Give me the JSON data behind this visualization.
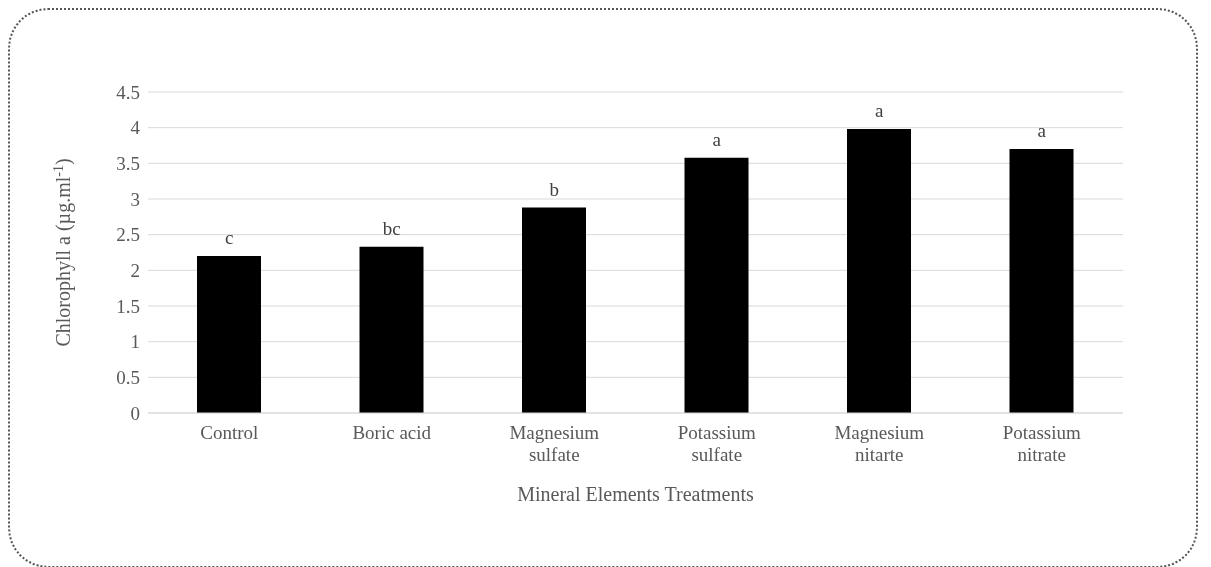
{
  "chart_data": {
    "type": "bar",
    "xlabel": "Mineral Elements Treatments",
    "ylabel": "Chlorophyll a (µg.ml$^{-1}$)",
    "categories": [
      "Control",
      "Boric acid",
      "Magnesium sulfate",
      "Potassium sulfate",
      "Magnesium nitarte",
      "Potassium nitrate"
    ],
    "values": [
      2.2,
      2.33,
      2.88,
      3.58,
      3.98,
      3.7
    ],
    "color": "#000000",
    "ylim": [
      0,
      4.5
    ],
    "yticks": [
      0,
      0.5,
      1,
      1.5,
      2,
      2.5,
      3,
      3.5,
      4,
      4.5
    ],
    "grid": "y",
    "legend": false,
    "annotations": [
      {
        "text": "c",
        "x": "Control",
        "y": 2.2
      },
      {
        "text": "bc",
        "x": "Boric acid",
        "y": 2.33
      },
      {
        "text": "b",
        "x": "Magnesium sulfate",
        "y": 2.88
      },
      {
        "text": "a",
        "x": "Potassium sulfate",
        "y": 3.58
      },
      {
        "text": "a",
        "x": "Magnesium nitarte",
        "y": 3.98
      },
      {
        "text": "a",
        "x": "Potassium nitrate",
        "y": 3.7
      }
    ]
  }
}
